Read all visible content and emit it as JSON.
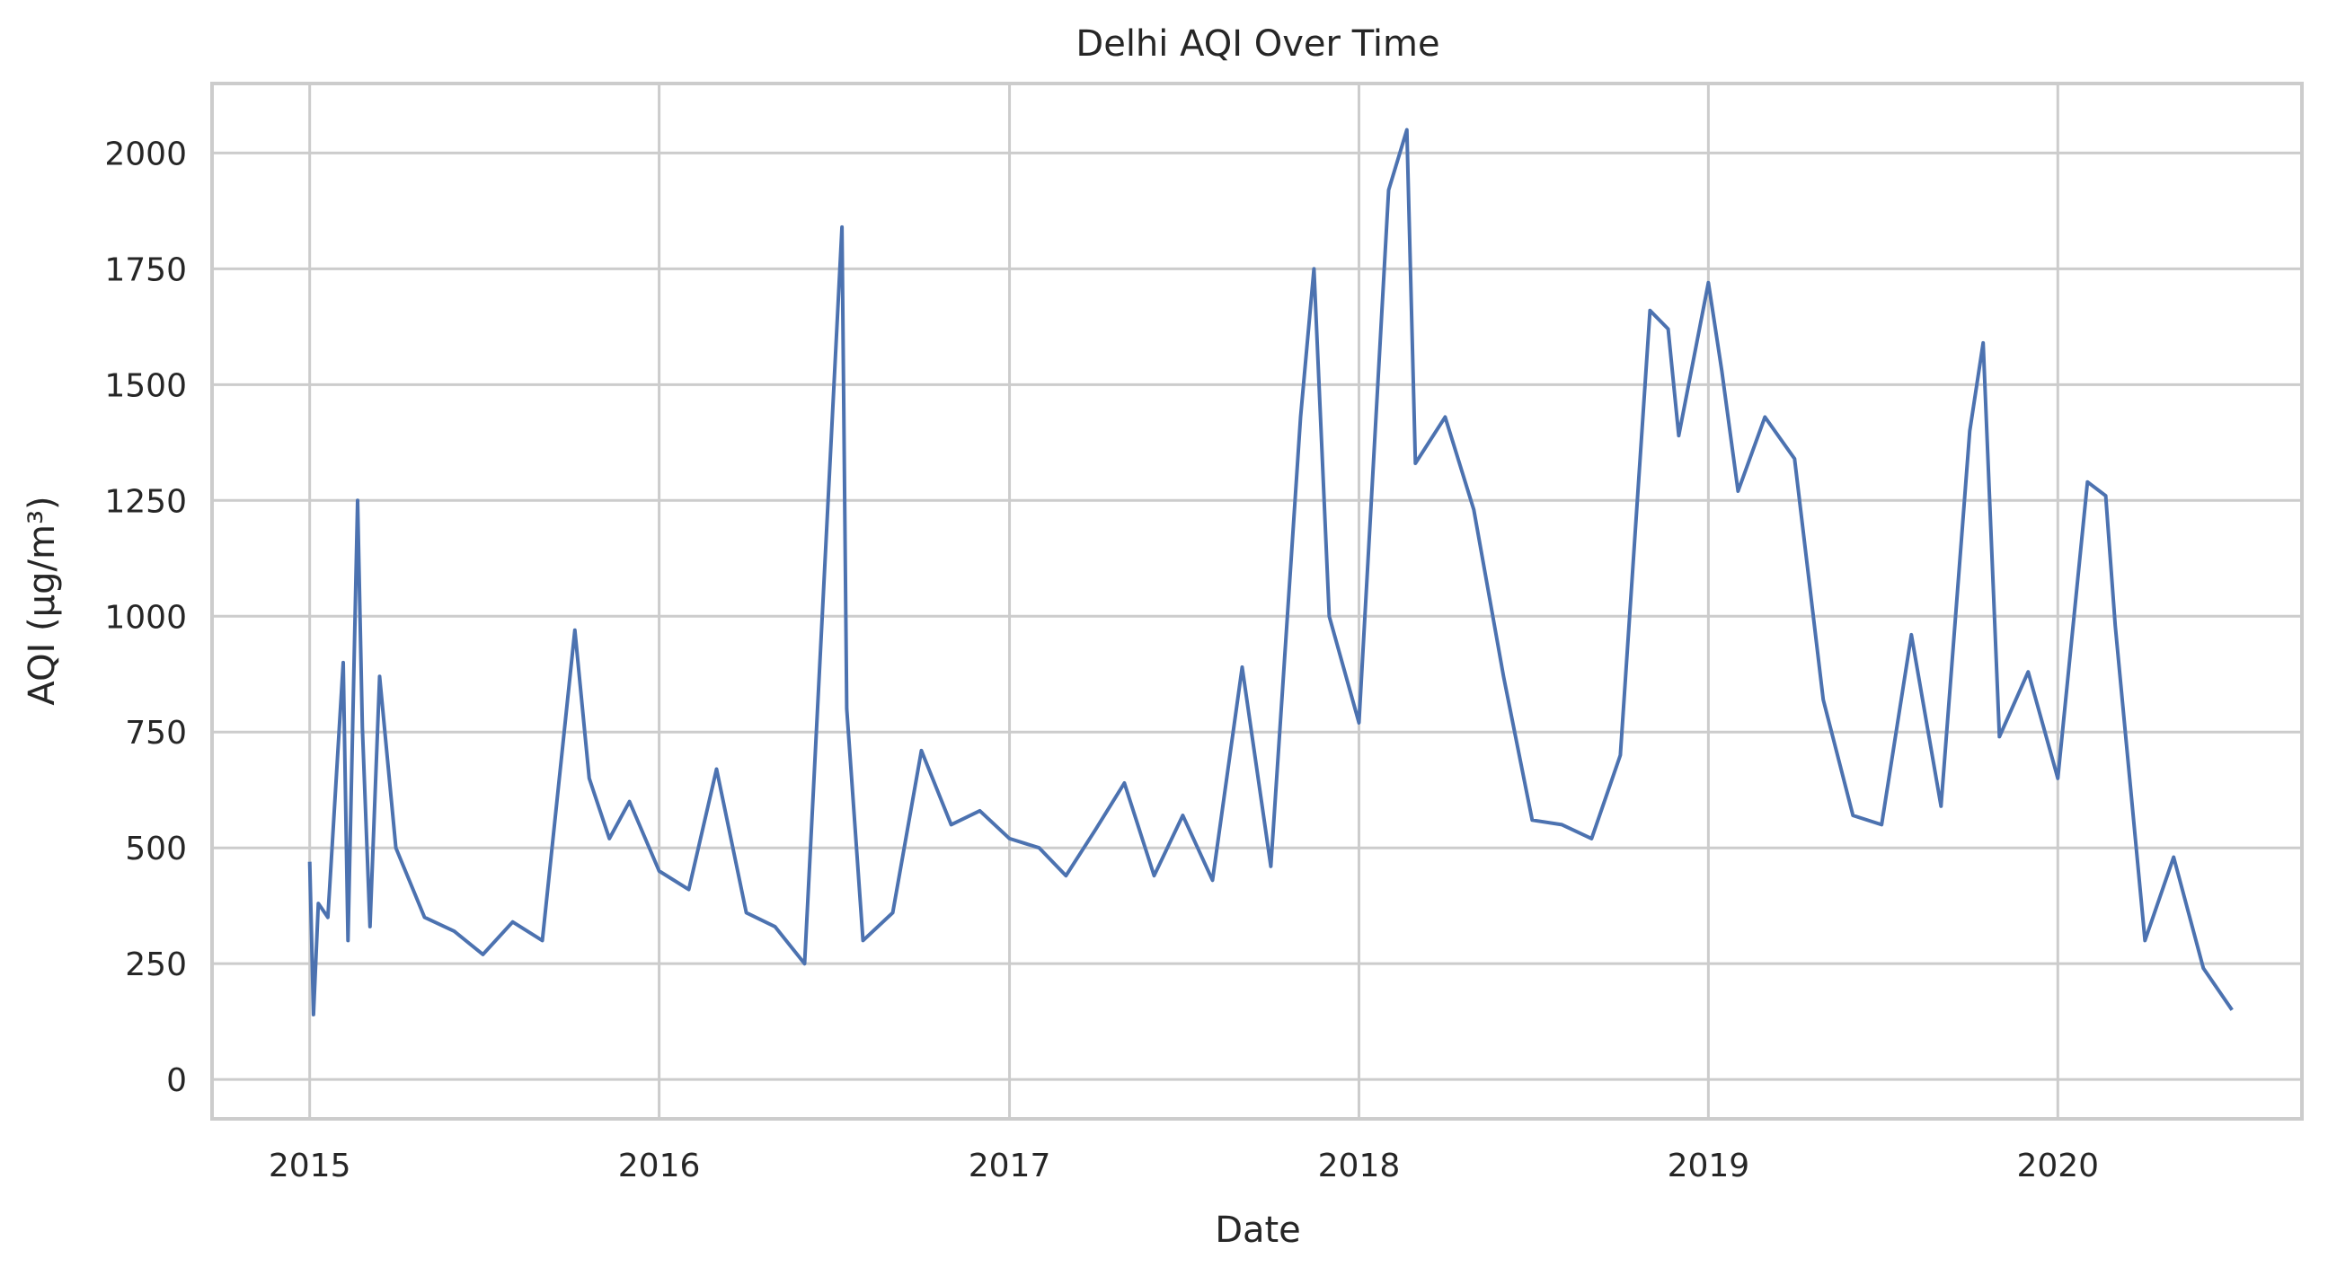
{
  "chart_data": {
    "type": "line",
    "title": "Delhi AQI Over Time",
    "xlabel": "Date",
    "ylabel": "AQI (µg/m³)",
    "xlim": [
      "2014-09-21",
      "2020-09-12"
    ],
    "ylim": [
      -85,
      2150
    ],
    "x_ticks": [
      "2015",
      "2016",
      "2017",
      "2018",
      "2019",
      "2020"
    ],
    "y_ticks": [
      0,
      250,
      500,
      750,
      1000,
      1250,
      1500,
      1750,
      2000
    ],
    "grid": true,
    "legend": "none",
    "colors": {
      "series": "#4c72b0"
    },
    "series": [
      {
        "x": [
          "2015-01-01",
          "2015-01-05",
          "2015-01-10",
          "2015-01-20",
          "2015-02-05",
          "2015-02-10",
          "2015-02-20",
          "2015-02-25",
          "2015-03-05",
          "2015-03-15",
          "2015-04-01",
          "2015-05-01",
          "2015-06-01",
          "2015-07-01",
          "2015-08-01",
          "2015-09-01",
          "2015-10-05",
          "2015-10-20",
          "2015-11-10",
          "2015-12-01",
          "2016-01-01",
          "2016-02-01",
          "2016-03-01",
          "2016-04-01",
          "2016-05-01",
          "2016-06-01",
          "2016-07-10",
          "2016-07-15",
          "2016-08-01",
          "2016-09-01",
          "2016-10-01",
          "2016-11-01",
          "2016-12-01",
          "2017-01-01",
          "2017-02-01",
          "2017-03-01",
          "2017-04-01",
          "2017-05-01",
          "2017-06-01",
          "2017-07-01",
          "2017-08-01",
          "2017-09-01",
          "2017-10-01",
          "2017-11-01",
          "2017-11-15",
          "2017-12-01",
          "2018-01-01",
          "2018-02-01",
          "2018-02-20",
          "2018-03-01",
          "2018-04-01",
          "2018-05-01",
          "2018-06-01",
          "2018-07-01",
          "2018-08-01",
          "2018-09-01",
          "2018-10-01",
          "2018-11-01",
          "2018-11-20",
          "2018-12-01",
          "2019-01-01",
          "2019-01-15",
          "2019-02-01",
          "2019-03-01",
          "2019-04-01",
          "2019-05-01",
          "2019-06-01",
          "2019-07-01",
          "2019-08-01",
          "2019-09-01",
          "2019-10-01",
          "2019-10-15",
          "2019-11-01",
          "2019-12-01",
          "2020-01-01",
          "2020-02-01",
          "2020-02-20",
          "2020-03-01",
          "2020-04-01",
          "2020-05-01",
          "2020-06-01",
          "2020-07-01"
        ],
        "y": [
          470,
          140,
          380,
          350,
          900,
          300,
          1250,
          760,
          330,
          870,
          500,
          350,
          320,
          270,
          340,
          300,
          970,
          650,
          520,
          600,
          450,
          410,
          670,
          360,
          330,
          250,
          1840,
          800,
          300,
          360,
          710,
          550,
          580,
          520,
          500,
          440,
          540,
          640,
          440,
          570,
          430,
          890,
          460,
          1430,
          1750,
          1000,
          770,
          1920,
          2050,
          1330,
          1430,
          1230,
          870,
          560,
          550,
          520,
          700,
          1660,
          1620,
          1390,
          1720,
          1530,
          1270,
          1430,
          1340,
          820,
          570,
          550,
          960,
          590,
          1400,
          1590,
          740,
          880,
          650,
          1290,
          1260,
          980,
          300,
          480,
          240,
          150
        ]
      }
    ]
  }
}
